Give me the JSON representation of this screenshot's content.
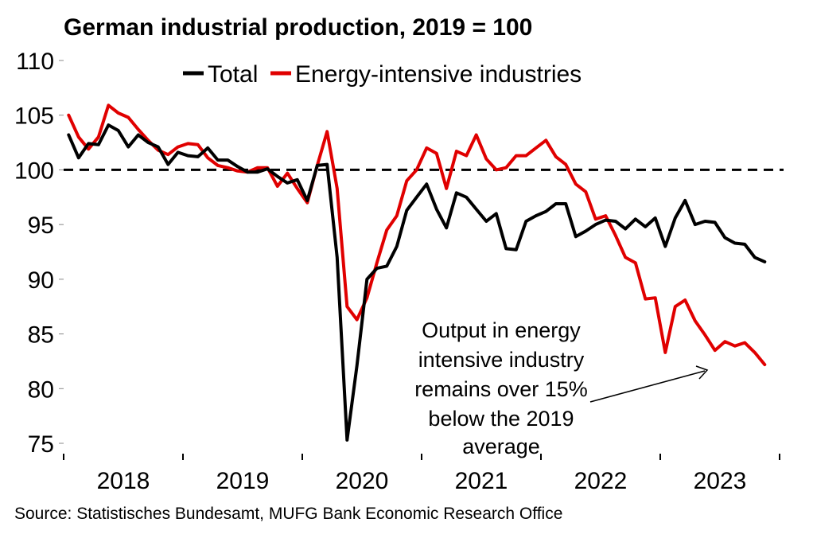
{
  "chart_data": {
    "type": "line",
    "title": "German industrial production, 2019 = 100",
    "ylim": [
      75,
      110
    ],
    "yticks": [
      "75",
      "80",
      "85",
      "90",
      "95",
      "100",
      "105",
      "110"
    ],
    "xlim": [
      2018,
      2024
    ],
    "xticks": [
      "2018",
      "2019",
      "2020",
      "2021",
      "2022",
      "2023"
    ],
    "reference_line": {
      "y": 100,
      "style": "dashed"
    },
    "legend_position": "top",
    "series": [
      {
        "name": "Total",
        "color": "#000000",
        "values": [
          103.2,
          101.1,
          102.4,
          102.3,
          104.1,
          103.6,
          102.1,
          103.2,
          102.5,
          102.1,
          100.5,
          101.6,
          101.3,
          101.2,
          102.0,
          100.9,
          100.9,
          100.3,
          99.8,
          99.8,
          100.1,
          99.4,
          98.8,
          99.1,
          97.2,
          100.4,
          100.5,
          92.0,
          75.3,
          82.1,
          90.0,
          91.0,
          91.2,
          93.0,
          96.3,
          97.5,
          98.7,
          96.4,
          94.7,
          97.9,
          97.5,
          96.4,
          95.3,
          96.0,
          92.8,
          92.7,
          95.3,
          95.8,
          96.2,
          96.9,
          96.9,
          93.9,
          94.4,
          95.0,
          95.4,
          95.3,
          94.6,
          95.5,
          94.8,
          95.6,
          93.0,
          95.6,
          97.2,
          95.0,
          95.3,
          95.2,
          93.8,
          93.3,
          93.2,
          92.0,
          91.6
        ]
      },
      {
        "name": "Energy-intensive industries",
        "color": "#e00000",
        "values": [
          105.0,
          103.0,
          101.9,
          103.0,
          105.9,
          105.2,
          104.8,
          103.7,
          102.7,
          101.8,
          101.4,
          102.1,
          102.4,
          102.3,
          101.1,
          100.4,
          100.2,
          99.9,
          99.8,
          100.2,
          100.2,
          98.5,
          99.7,
          98.3,
          97.0,
          100.4,
          103.5,
          98.3,
          87.5,
          86.3,
          88.3,
          91.5,
          94.5,
          95.8,
          99.0,
          100.0,
          102.0,
          101.5,
          98.3,
          101.7,
          101.3,
          103.2,
          101.0,
          100.0,
          100.2,
          101.3,
          101.3,
          102.0,
          102.7,
          101.2,
          100.5,
          98.7,
          98.0,
          95.5,
          95.8,
          94.0,
          92.0,
          91.5,
          88.2,
          88.3,
          83.3,
          87.5,
          88.1,
          86.2,
          84.9,
          83.5,
          84.3,
          83.9,
          84.2,
          83.3,
          82.2
        ]
      }
    ],
    "annotation": [
      "Output in energy",
      "intensive industry",
      "remains over 15%",
      "below the 2019",
      "average"
    ]
  },
  "source": "Source: Statistisches Bundesamt, MUFG Bank Economic Research Office"
}
